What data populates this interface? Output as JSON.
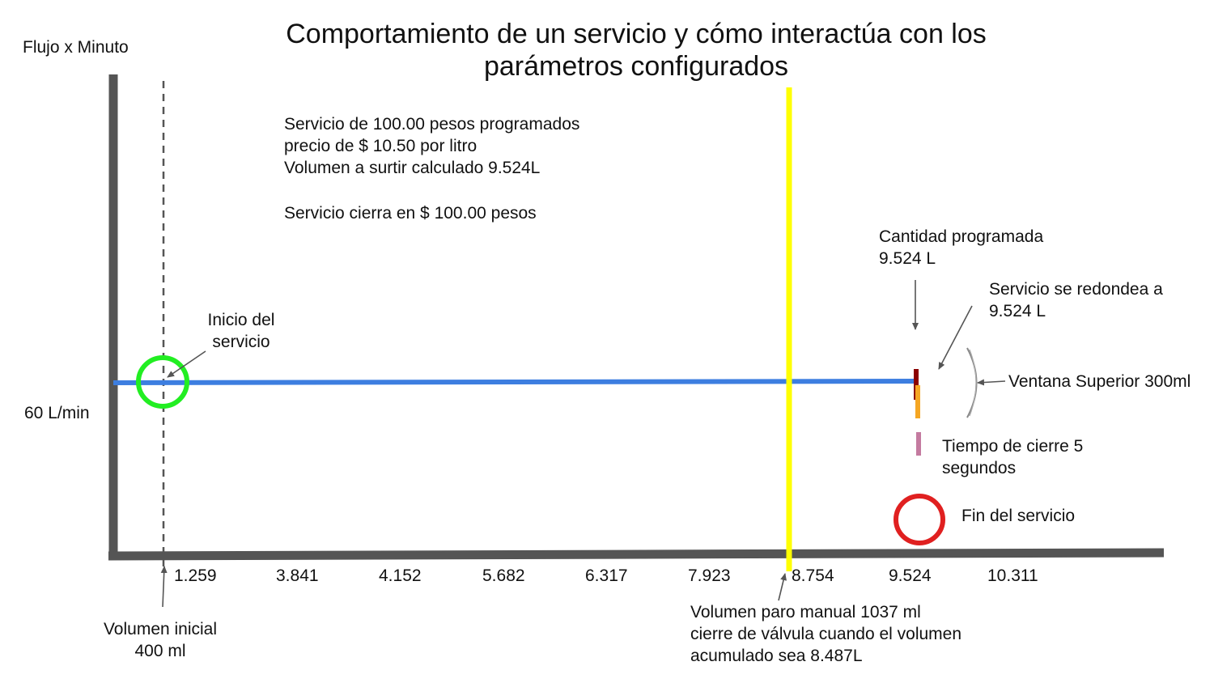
{
  "title": {
    "line1": "Comportamiento de un servicio y cómo interactúa con los",
    "line2": "parámetros configurados"
  },
  "y_axis": {
    "label": "Flujo x Minuto",
    "flow_value": "60 L/min"
  },
  "x_axis": {
    "ticks": [
      "1.259",
      "3.841",
      "4.152",
      "5.682",
      "6.317",
      "7.923",
      "8.754",
      "9.524",
      "10.311"
    ]
  },
  "info": {
    "line1": "Servicio de 100.00 pesos programados",
    "line2": "precio de $ 10.50 por litro",
    "line3": "Volumen a surtir calculado 9.524L",
    "line4": "Servicio cierra en $ 100.00 pesos"
  },
  "annotations": {
    "inicio_line1": "Inicio del",
    "inicio_line2": "servicio",
    "volumen_inicial_line1": "Volumen inicial",
    "volumen_inicial_line2": "400 ml",
    "cantidad_line1": "Cantidad programada",
    "cantidad_line2": "9.524 L",
    "redondea_line1": "Servicio se redondea a",
    "redondea_line2": "9.524 L",
    "ventana": "Ventana Superior 300ml",
    "tiempo_line1": "Tiempo de cierre 5",
    "tiempo_line2": "segundos",
    "fin": "Fin del servicio",
    "paro_line1": "Volumen paro manual 1037 ml",
    "paro_line2": "cierre de válvula cuando el volumen",
    "paro_line3": "acumulado sea 8.487L"
  },
  "colors": {
    "axis": "#555555",
    "flow_line": "#3d7ee0",
    "start_circle": "#22ee22",
    "end_circle": "#e02020",
    "manual_stop_line": "#ffff00",
    "programmed_marker": "#8b0000",
    "rounding_marker": "#f5a623",
    "close_time_marker": "#c47ba0",
    "window_bracket": "#888888"
  }
}
